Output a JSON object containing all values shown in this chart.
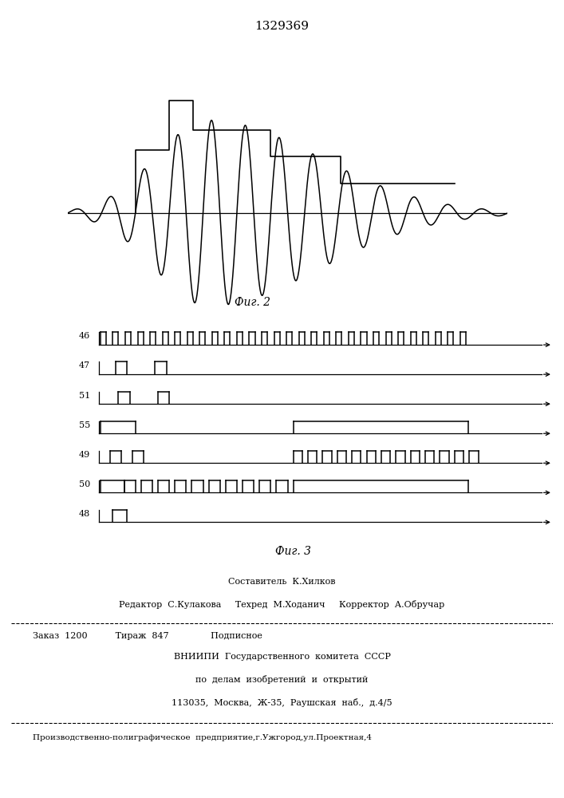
{
  "patent_number": "1329369",
  "fig2_caption": "Фиг. 2",
  "fig3_caption": "Фиг. 3",
  "bg_color": "#ffffff",
  "footer_lines": [
    "Составитель  К.Хилков",
    "Редактор  С.Кулакова     Техред  М.Ходанич     Корректор  А.Обручар",
    "Заказ  1200          Тираж  847               Подписное",
    "ВНИИПИ  Государственного  комитета  СССР",
    "по  делам  изобретений  и  открытий",
    "113035,  Москва,  Ж-35,  Раушская  наб.,  д.4/5",
    "Производственно-полиграфическое  предприятие,г.Ужгород,ул.Проектная,4"
  ]
}
